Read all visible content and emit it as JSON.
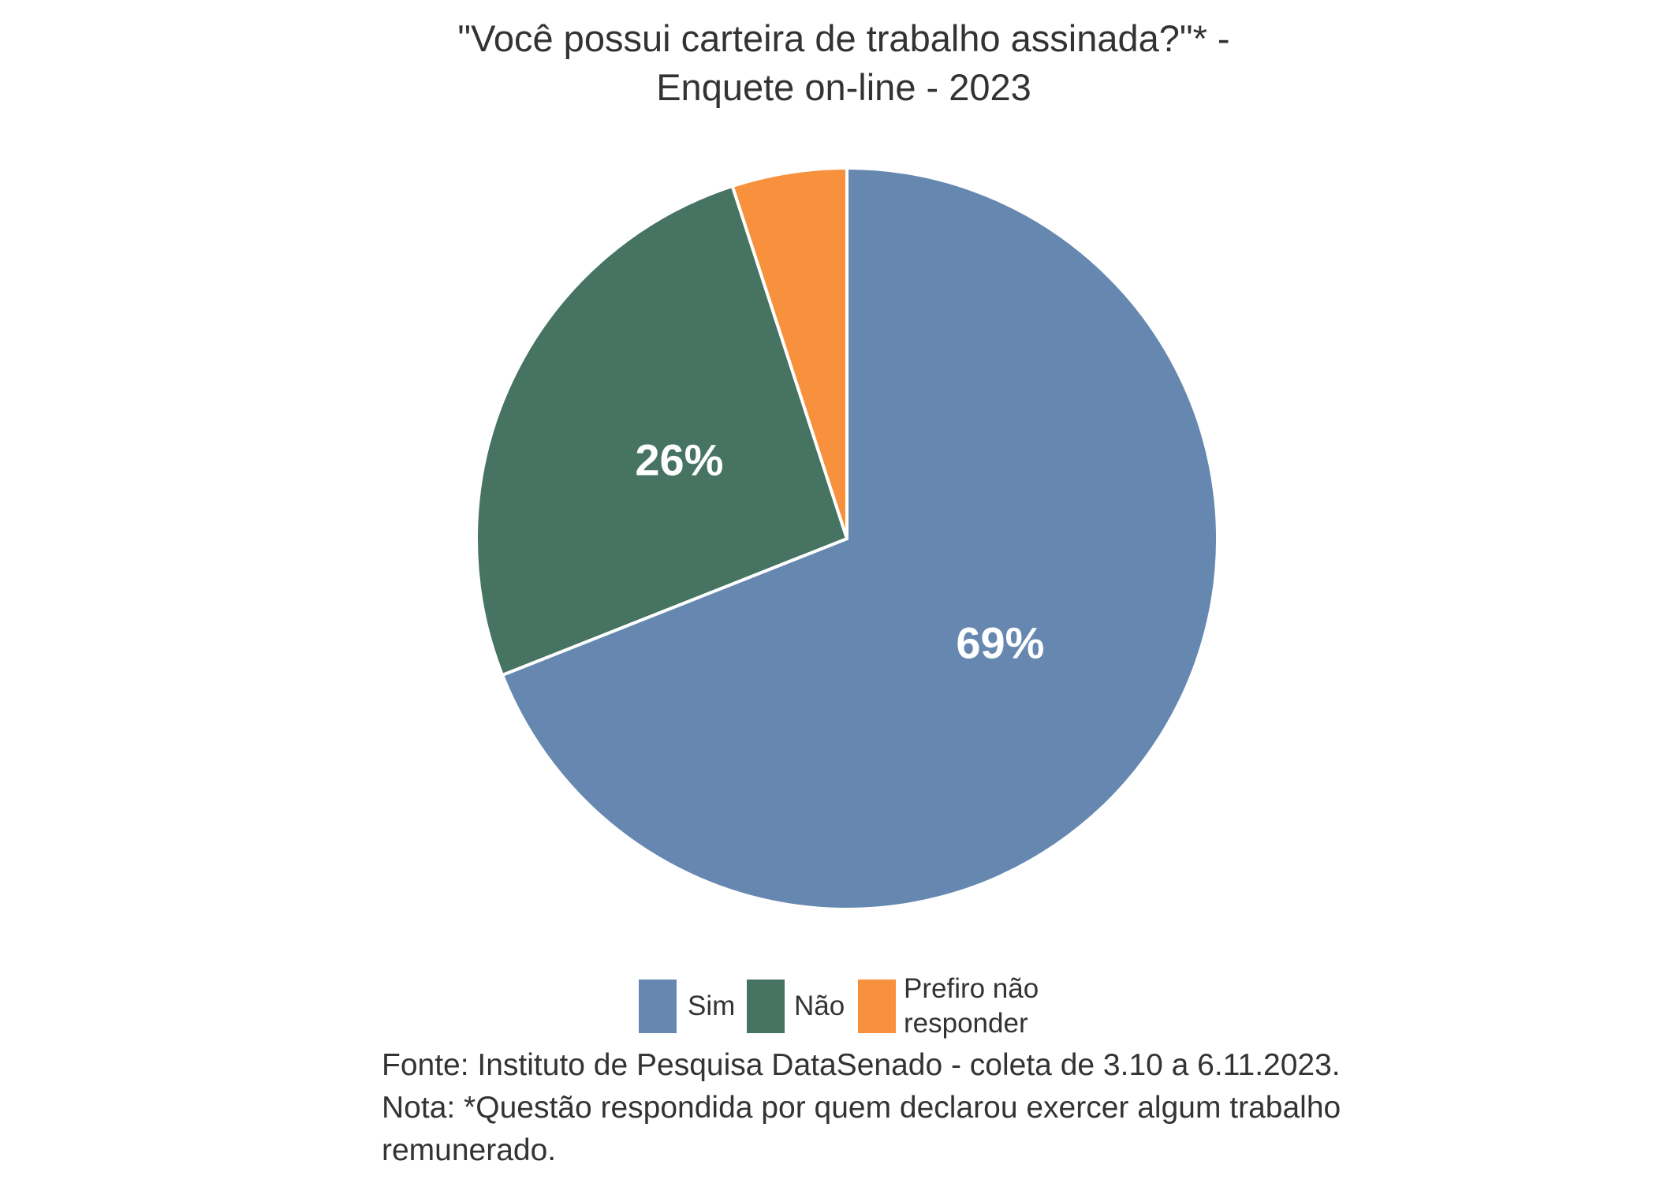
{
  "chart_data": {
    "type": "pie",
    "title_lines": [
      "\"Você possui carteira de trabalho assinada?\"* -",
      "Enquete on-line - 2023"
    ],
    "slices": [
      {
        "name": "Sim",
        "value": 69,
        "label": "69%",
        "color": "#6688B0"
      },
      {
        "name": "Não",
        "value": 26,
        "label": "26%",
        "color": "#467362"
      },
      {
        "name": "Prefiro não responder",
        "value": 5,
        "label": "",
        "color": "#F8913D"
      }
    ],
    "legend": {
      "placement": "bottom",
      "items": [
        {
          "lines": [
            "Sim"
          ],
          "color": "#6688B0"
        },
        {
          "lines": [
            "Não"
          ],
          "color": "#467362"
        },
        {
          "lines": [
            "Prefiro não",
            "responder"
          ],
          "color": "#F8913D"
        }
      ]
    }
  },
  "footnotes": {
    "source": "Fonte: Instituto de Pesquisa DataSenado - coleta de 3.10 a 6.11.2023.",
    "note_line1": "Nota: *Questão respondida por quem declarou exercer algum trabalho",
    "note_line2": "remunerado."
  }
}
